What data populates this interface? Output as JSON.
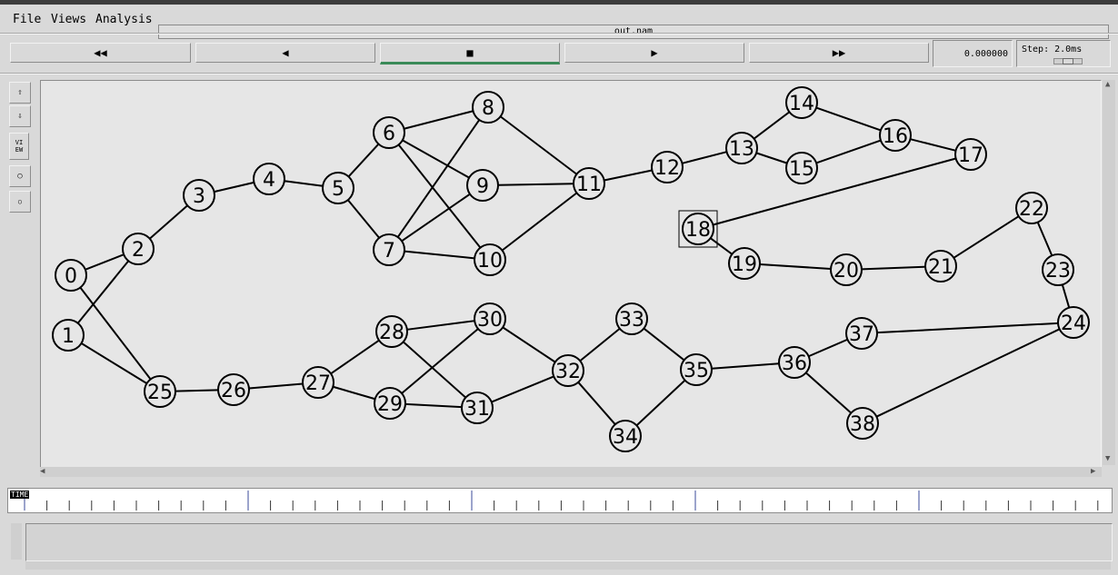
{
  "menu": {
    "file": "File",
    "views": "Views",
    "analysis": "Analysis"
  },
  "window_title": "out.nam",
  "controls": {
    "rewind": "◀◀",
    "back": "◀",
    "stop": "■",
    "play": "▶",
    "fast_forward": "▶▶"
  },
  "time_display": "0.000000",
  "step_label": "Step: 2.0ms",
  "view_label": "VIEW",
  "timeline_label": "TIME",
  "colors": {
    "canvas": "#e6e6e6",
    "active": "#3a8a58"
  },
  "network": {
    "selected_node": "18",
    "nodes": [
      {
        "id": "0"
      },
      {
        "id": "1"
      },
      {
        "id": "2"
      },
      {
        "id": "3"
      },
      {
        "id": "4"
      },
      {
        "id": "5"
      },
      {
        "id": "6"
      },
      {
        "id": "7"
      },
      {
        "id": "8"
      },
      {
        "id": "9"
      },
      {
        "id": "10"
      },
      {
        "id": "11"
      },
      {
        "id": "12"
      },
      {
        "id": "13"
      },
      {
        "id": "14"
      },
      {
        "id": "15"
      },
      {
        "id": "16"
      },
      {
        "id": "17"
      },
      {
        "id": "18"
      },
      {
        "id": "19"
      },
      {
        "id": "20"
      },
      {
        "id": "21"
      },
      {
        "id": "22"
      },
      {
        "id": "23"
      },
      {
        "id": "24"
      },
      {
        "id": "25"
      },
      {
        "id": "26"
      },
      {
        "id": "27"
      },
      {
        "id": "28"
      },
      {
        "id": "29"
      },
      {
        "id": "30"
      },
      {
        "id": "31"
      },
      {
        "id": "32"
      },
      {
        "id": "33"
      },
      {
        "id": "34"
      },
      {
        "id": "35"
      },
      {
        "id": "36"
      },
      {
        "id": "37"
      },
      {
        "id": "38"
      }
    ],
    "links": [
      [
        "0",
        "2"
      ],
      [
        "0",
        "25"
      ],
      [
        "1",
        "2"
      ],
      [
        "1",
        "25"
      ],
      [
        "2",
        "3"
      ],
      [
        "3",
        "4"
      ],
      [
        "4",
        "5"
      ],
      [
        "5",
        "6"
      ],
      [
        "5",
        "7"
      ],
      [
        "6",
        "8"
      ],
      [
        "6",
        "9"
      ],
      [
        "6",
        "10"
      ],
      [
        "7",
        "8"
      ],
      [
        "7",
        "9"
      ],
      [
        "7",
        "10"
      ],
      [
        "8",
        "11"
      ],
      [
        "9",
        "11"
      ],
      [
        "10",
        "11"
      ],
      [
        "11",
        "12"
      ],
      [
        "12",
        "13"
      ],
      [
        "13",
        "14"
      ],
      [
        "13",
        "15"
      ],
      [
        "14",
        "16"
      ],
      [
        "15",
        "16"
      ],
      [
        "16",
        "17"
      ],
      [
        "17",
        "18"
      ],
      [
        "18",
        "19"
      ],
      [
        "19",
        "20"
      ],
      [
        "20",
        "21"
      ],
      [
        "21",
        "22"
      ],
      [
        "22",
        "23"
      ],
      [
        "23",
        "24"
      ],
      [
        "24",
        "37"
      ],
      [
        "24",
        "38"
      ],
      [
        "37",
        "36"
      ],
      [
        "38",
        "36"
      ],
      [
        "36",
        "35"
      ],
      [
        "35",
        "33"
      ],
      [
        "35",
        "34"
      ],
      [
        "33",
        "32"
      ],
      [
        "34",
        "32"
      ],
      [
        "32",
        "30"
      ],
      [
        "32",
        "31"
      ],
      [
        "30",
        "28"
      ],
      [
        "30",
        "29"
      ],
      [
        "31",
        "28"
      ],
      [
        "31",
        "29"
      ],
      [
        "28",
        "27"
      ],
      [
        "29",
        "27"
      ],
      [
        "27",
        "26"
      ],
      [
        "26",
        "25"
      ]
    ]
  }
}
